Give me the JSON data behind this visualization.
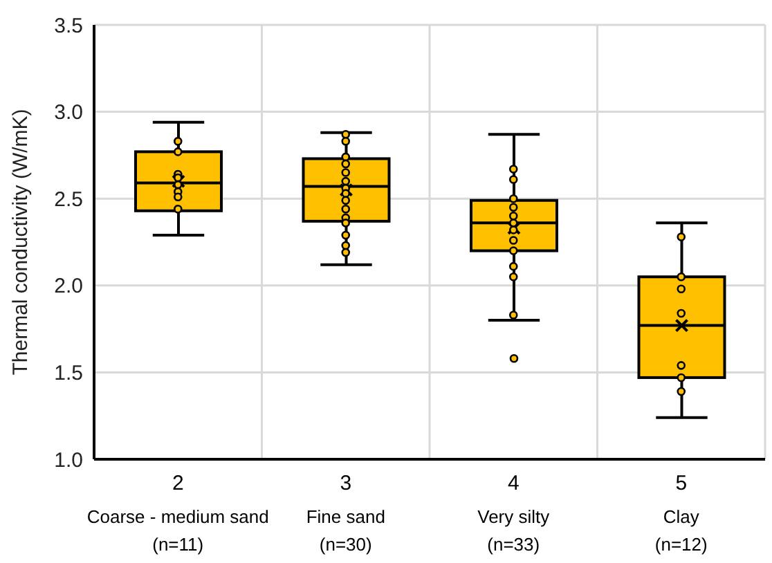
{
  "chart_data": {
    "type": "box",
    "ylabel": "Thermal conductivity (W/mK)",
    "categories": [
      "2\nCoarse - medium sand\n(n=11)",
      "3\nFine sand\n(n=30)",
      "4\nVery silty\n(n=33)",
      "5\nClay\n(n=12)"
    ],
    "color": "#ffc000",
    "boxes": [
      {
        "low": 2.29,
        "q1": 2.43,
        "median": 2.59,
        "q3": 2.77,
        "high": 2.94,
        "mean": 2.6
      },
      {
        "low": 2.12,
        "q1": 2.37,
        "median": 2.57,
        "q3": 2.73,
        "high": 2.88,
        "mean": 2.55
      },
      {
        "low": 1.8,
        "q1": 2.2,
        "median": 2.36,
        "q3": 2.49,
        "high": 2.87,
        "mean": 2.33,
        "outliers": [
          1.58
        ]
      },
      {
        "low": 1.24,
        "q1": 1.47,
        "median": 1.77,
        "q3": 2.05,
        "high": 2.36,
        "mean": 1.77
      }
    ],
    "series": [
      {
        "type": "scatter",
        "color": "#ffc000",
        "marker": "circle",
        "x": [
          "2\nCoarse - medium sand\n(n=11)",
          "2\nCoarse - medium sand\n(n=11)",
          "2\nCoarse - medium sand\n(n=11)",
          "2\nCoarse - medium sand\n(n=11)",
          "2\nCoarse - medium sand\n(n=11)",
          "2\nCoarse - medium sand\n(n=11)",
          "2\nCoarse - medium sand\n(n=11)",
          "2\nCoarse - medium sand\n(n=11)",
          "3\nFine sand\n(n=30)",
          "3\nFine sand\n(n=30)",
          "3\nFine sand\n(n=30)",
          "3\nFine sand\n(n=30)",
          "3\nFine sand\n(n=30)",
          "3\nFine sand\n(n=30)",
          "3\nFine sand\n(n=30)",
          "3\nFine sand\n(n=30)",
          "3\nFine sand\n(n=30)",
          "3\nFine sand\n(n=30)",
          "3\nFine sand\n(n=30)",
          "3\nFine sand\n(n=30)",
          "3\nFine sand\n(n=30)",
          "3\nFine sand\n(n=30)",
          "3\nFine sand\n(n=30)",
          "4\nVery silty\n(n=33)",
          "4\nVery silty\n(n=33)",
          "4\nVery silty\n(n=33)",
          "4\nVery silty\n(n=33)",
          "4\nVery silty\n(n=33)",
          "4\nVery silty\n(n=33)",
          "4\nVery silty\n(n=33)",
          "4\nVery silty\n(n=33)",
          "4\nVery silty\n(n=33)",
          "4\nVery silty\n(n=33)",
          "4\nVery silty\n(n=33)",
          "4\nVery silty\n(n=33)",
          "5\nClay\n(n=12)",
          "5\nClay\n(n=12)",
          "5\nClay\n(n=12)",
          "5\nClay\n(n=12)",
          "5\nClay\n(n=12)",
          "5\nClay\n(n=12)",
          "5\nClay\n(n=12)"
        ],
        "values": [
          2.83,
          2.77,
          2.64,
          2.62,
          2.58,
          2.54,
          2.51,
          2.44,
          2.87,
          2.83,
          2.74,
          2.7,
          2.65,
          2.6,
          2.56,
          2.53,
          2.49,
          2.44,
          2.39,
          2.36,
          2.29,
          2.23,
          2.19,
          2.67,
          2.61,
          2.5,
          2.45,
          2.4,
          2.36,
          2.32,
          2.26,
          2.2,
          2.11,
          2.05,
          1.83,
          2.28,
          2.05,
          1.98,
          1.84,
          1.54,
          1.47,
          1.39
        ]
      }
    ],
    "ylim": [
      1,
      3.5
    ],
    "yticks": [
      {
        "value": 1,
        "label": "1.0"
      },
      {
        "value": 1.5,
        "label": "1.5"
      },
      {
        "value": 2,
        "label": "2.0"
      },
      {
        "value": 2.5,
        "label": "2.5"
      },
      {
        "value": 3,
        "label": "3.0"
      },
      {
        "value": 3.5,
        "label": "3.5"
      }
    ],
    "grid": true
  }
}
